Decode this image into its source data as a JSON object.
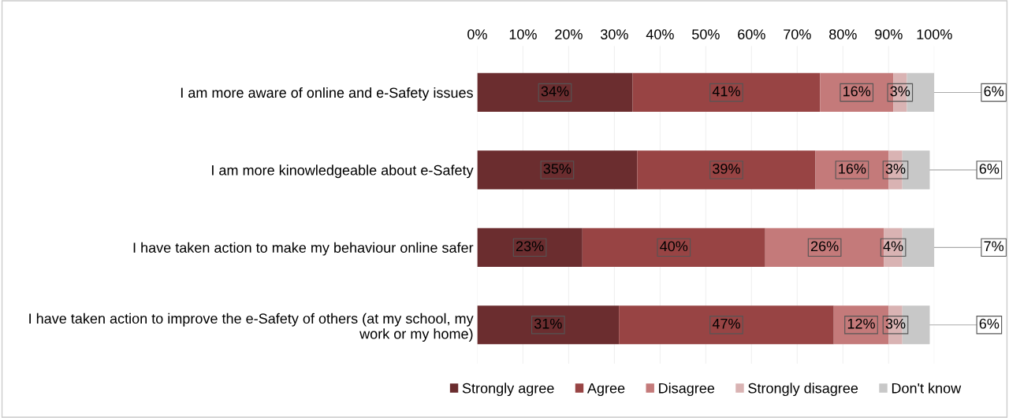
{
  "chart_data": {
    "type": "bar",
    "orientation": "horizontal",
    "stacked": true,
    "categories": [
      "I am more aware of online and e-Safety issues",
      "I am more kinowledgeable about e-Safety",
      "I have taken action to make my behaviour online safer",
      "I have taken action to improve the e-Safety of others (at my school, my work or my home)"
    ],
    "series": [
      {
        "name": "Strongly agree",
        "color": "#6b2d2f",
        "values": [
          34,
          35,
          23,
          31
        ],
        "value_labels": [
          "34%",
          "35%",
          "23%",
          "31%"
        ]
      },
      {
        "name": "Agree",
        "color": "#984444",
        "values": [
          41,
          39,
          40,
          47
        ],
        "value_labels": [
          "41%",
          "39%",
          "40%",
          "47%"
        ]
      },
      {
        "name": "Disagree",
        "color": "#c47a7a",
        "values": [
          16,
          16,
          26,
          12
        ],
        "value_labels": [
          "16%",
          "16%",
          "26%",
          "12%"
        ]
      },
      {
        "name": "Strongly disagree",
        "color": "#d9b3b3",
        "values": [
          3,
          3,
          4,
          3
        ],
        "value_labels": [
          "3%",
          "3%",
          "4%",
          "3%"
        ]
      },
      {
        "name": "Don't know",
        "color": "#c8c8c8",
        "values": [
          6,
          6,
          7,
          6
        ],
        "value_labels": [
          "6%",
          "6%",
          "7%",
          "6%"
        ]
      }
    ],
    "xlim": [
      0,
      100
    ],
    "xticks": [
      {
        "value": 0,
        "label": "0%"
      },
      {
        "value": 10,
        "label": "10%"
      },
      {
        "value": 20,
        "label": "20%"
      },
      {
        "value": 30,
        "label": "30%"
      },
      {
        "value": 40,
        "label": "40%"
      },
      {
        "value": 50,
        "label": "50%"
      },
      {
        "value": 60,
        "label": "60%"
      },
      {
        "value": 70,
        "label": "70%"
      },
      {
        "value": 80,
        "label": "80%"
      },
      {
        "value": 90,
        "label": "90%"
      },
      {
        "value": 100,
        "label": "100%"
      }
    ],
    "grid": "x",
    "legend": "bottom"
  }
}
